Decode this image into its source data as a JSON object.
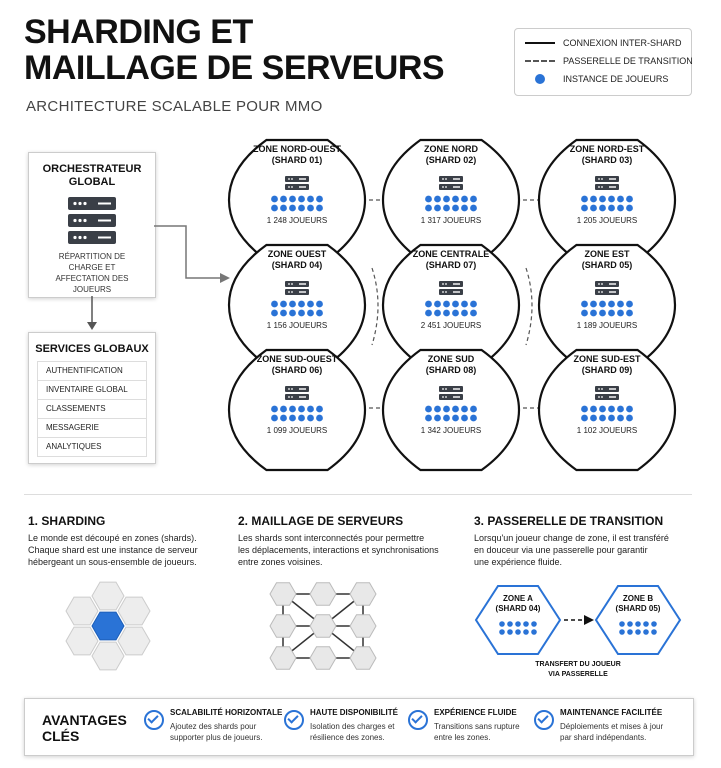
{
  "header": {
    "title_line1": "SHARDING ET",
    "title_line2": "MAILLAGE DE SERVEURS",
    "subtitle": "ARCHITECTURE SCALABLE POUR MMO"
  },
  "legend": {
    "solid": "CONNEXION INTER-SHARD",
    "dashed": "PASSERELLE DE TRANSITION",
    "dot": "INSTANCE DE JOUEURS"
  },
  "orchestrator": {
    "title": "ORCHESTRATEUR GLOBAL",
    "description": "RÉPARTITION DE CHARGE ET AFFECTATION DES JOUEURS"
  },
  "services": {
    "title": "SERVICES GLOBAUX",
    "items": [
      "AUTHENTIFICATION",
      "INVENTAIRE GLOBAL",
      "CLASSEMENTS",
      "MESSAGERIE",
      "ANALYTIQUES"
    ]
  },
  "zones": [
    {
      "name": "ZONE NORD-OUEST",
      "shard": "(SHARD 01)",
      "players": "1 248 JOUEURS"
    },
    {
      "name": "ZONE NORD",
      "shard": "(SHARD 02)",
      "players": "1 317 JOUEURS"
    },
    {
      "name": "ZONE NORD-EST",
      "shard": "(SHARD 03)",
      "players": "1 205 JOUEURS"
    },
    {
      "name": "ZONE OUEST",
      "shard": "(SHARD 04)",
      "players": "1 156 JOUEURS"
    },
    {
      "name": "ZONE CENTRALE",
      "shard": "(SHARD 07)",
      "players": "2 451 JOUEURS"
    },
    {
      "name": "ZONE EST",
      "shard": "(SHARD 05)",
      "players": "1 189 JOUEURS"
    },
    {
      "name": "ZONE SUD-OUEST",
      "shard": "(SHARD 06)",
      "players": "1 099 JOUEURS"
    },
    {
      "name": "ZONE SUD",
      "shard": "(SHARD 08)",
      "players": "1 342 JOUEURS"
    },
    {
      "name": "ZONE SUD-EST",
      "shard": "(SHARD 09)",
      "players": "1 102 JOUEURS"
    }
  ],
  "sections": {
    "sharding": {
      "title": "1. SHARDING",
      "line1": "Le monde est découpé en zones (shards).",
      "line2": "Chaque shard est une instance de serveur",
      "line3": "hébergeant un sous-ensemble de joueurs."
    },
    "mesh": {
      "title": "2. MAILLAGE DE SERVEURS",
      "line1": "Les shards sont interconnectés pour permettre",
      "line2": "les déplacements, interactions et synchronisations",
      "line3": "entre zones voisines."
    },
    "gateway": {
      "title": "3. PASSERELLE DE TRANSITION",
      "line1": "Lorsqu'un joueur change de zone, il est transféré",
      "line2": "en douceur via une passerelle pour garantir",
      "line3": "une expérience fluide.",
      "zone_a": "ZONE A",
      "zone_a_shard": "(SHARD 04)",
      "zone_b": "ZONE B",
      "zone_b_shard": "(SHARD 05)",
      "transfer1": "TRANSFERT DU JOUEUR",
      "transfer2": "VIA PASSERELLE"
    }
  },
  "advantages": {
    "title1": "AVANTAGES",
    "title2": "CLÉS",
    "items": [
      {
        "title": "SCALABILITÉ HORIZONTALE",
        "line1": "Ajoutez des shards pour",
        "line2": "supporter plus de joueurs."
      },
      {
        "title": "HAUTE DISPONIBILITÉ",
        "line1": "Isolation des charges et",
        "line2": "résilience des zones."
      },
      {
        "title": "EXPÉRIENCE FLUIDE",
        "line1": "Transitions sans rupture",
        "line2": "entre les zones."
      },
      {
        "title": "MAINTENANCE FACILITÉE",
        "line1": "Déploiements et mises à jour",
        "line2": "par shard indépendants."
      }
    ]
  },
  "colors": {
    "accent": "#2a73d6",
    "ink": "#111111",
    "server": "#3a3f47"
  }
}
